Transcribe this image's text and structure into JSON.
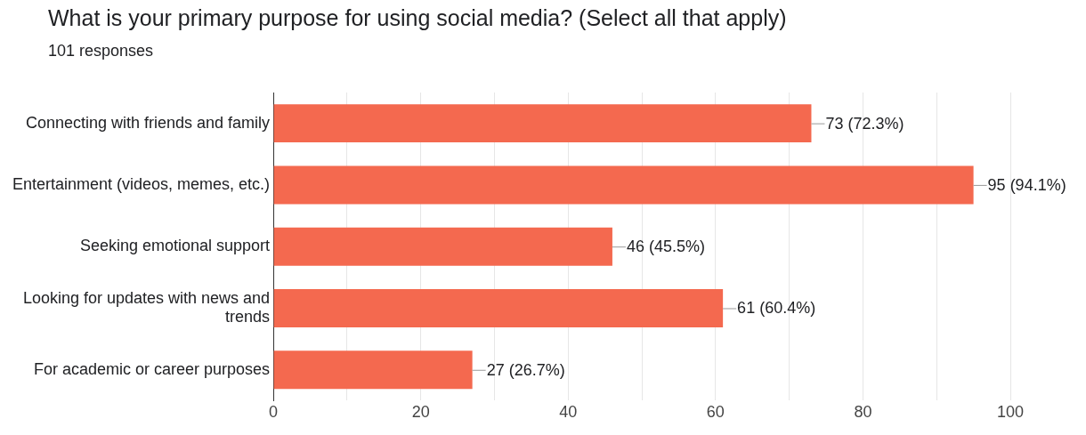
{
  "chart_data": {
    "type": "bar",
    "orientation": "horizontal",
    "title": "What is your primary purpose for using social media? (Select all that apply)",
    "subtitle": "101 responses",
    "categories": [
      "Connecting with friends and family",
      "Entertainment (videos, memes, etc.)",
      "Seeking emotional support",
      "Looking for updates with news and trends",
      "For academic or career purposes"
    ],
    "values": [
      73,
      95,
      46,
      61,
      27
    ],
    "value_labels": [
      "73 (72.3%)",
      "95 (94.1%)",
      "46 (45.5%)",
      "61 (60.4%)",
      "27 (26.7%)"
    ],
    "color": "#f4694f",
    "xlim": [
      0,
      100
    ],
    "xticks": [
      0,
      {
        "value": 10,
        "label": null
      },
      20,
      {
        "value": 30,
        "label": null
      },
      40,
      {
        "value": 50,
        "label": null
      },
      60,
      {
        "value": 70,
        "label": null
      },
      80,
      {
        "value": 90,
        "label": null
      },
      100
    ],
    "grid": "x"
  }
}
